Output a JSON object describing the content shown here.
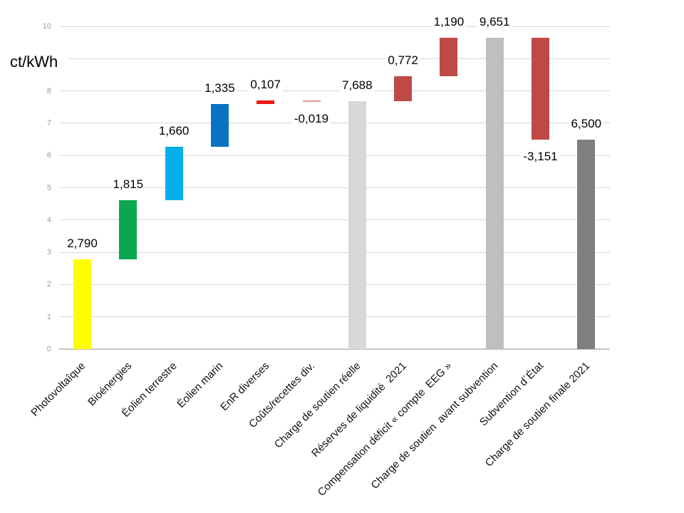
{
  "unit_label": "ct/kWh",
  "chart_data": {
    "type": "bar",
    "subtype": "waterfall",
    "title": "",
    "ylabel": "ct/kWh",
    "xlabel": "",
    "ylim": [
      0,
      10
    ],
    "grid": true,
    "legend": "none",
    "y_axis": {
      "ticks": [
        {
          "value": 0,
          "label": "0"
        },
        {
          "value": 1,
          "label": "1"
        },
        {
          "value": 2,
          "label": "2"
        },
        {
          "value": 3,
          "label": "3"
        },
        {
          "value": 4,
          "label": "4"
        },
        {
          "value": 5,
          "label": "5"
        },
        {
          "value": 6,
          "label": "6"
        },
        {
          "value": 7,
          "label": "7"
        },
        {
          "value": 8,
          "label": "8"
        },
        {
          "value": 9,
          "label": ""
        },
        {
          "value": 10,
          "label": "10"
        }
      ]
    },
    "categories": [
      "Photovoltaîque",
      "Bioénergies",
      "Éolien terrestre",
      "Éolien marin",
      "EnR diverses",
      "Coûts/recettes div.",
      "Charge de soutien réelle",
      "Réserves de liquidité  2021",
      "Compensation déficit « compte  EEG »",
      "Charge de soutien  avant subvention",
      "Subvention d´État",
      "Charge de soutien finale 2021"
    ],
    "bars": [
      {
        "category": "Photovoltaîque",
        "value": 2.79,
        "value_label": "2,790",
        "start": 0,
        "end": 2.79,
        "color": "#ffff00",
        "label_side": "above"
      },
      {
        "category": "Bioénergies",
        "value": 1.815,
        "value_label": "1,815",
        "start": 2.79,
        "end": 4.605,
        "color": "#0aa74e",
        "label_side": "above"
      },
      {
        "category": "Éolien terrestre",
        "value": 1.66,
        "value_label": "1,660",
        "start": 4.605,
        "end": 6.265,
        "color": "#06aeec",
        "label_side": "above"
      },
      {
        "category": "Éolien marin",
        "value": 1.335,
        "value_label": "1,335",
        "start": 6.265,
        "end": 7.6,
        "color": "#0a72c2",
        "label_side": "above"
      },
      {
        "category": "EnR diverses",
        "value": 0.107,
        "value_label": "0,107",
        "start": 7.6,
        "end": 7.707,
        "color": "#f01414",
        "label_side": "above"
      },
      {
        "category": "Coûts/recettes div.",
        "value": -0.019,
        "value_label": "-0,019",
        "start": 7.707,
        "end": 7.688,
        "color": "#e39a98",
        "label_side": "below"
      },
      {
        "category": "Charge de soutien réelle",
        "value": 7.688,
        "value_label": "7,688",
        "start": 0,
        "end": 7.688,
        "color": "#d8d8d8",
        "label_side": "above"
      },
      {
        "category": "Réserves de liquidité  2021",
        "value": 0.772,
        "value_label": "0,772",
        "start": 7.688,
        "end": 8.46,
        "color": "#be4a46",
        "label_side": "above"
      },
      {
        "category": "Compensation déficit « compte  EEG »",
        "value": 1.19,
        "value_label": "1,190",
        "start": 8.46,
        "end": 9.651,
        "color": "#be4a46",
        "label_side": "above"
      },
      {
        "category": "Charge de soutien  avant subvention",
        "value": 9.651,
        "value_label": "9,651",
        "start": 0,
        "end": 9.651,
        "color": "#bfbfbf",
        "label_side": "above"
      },
      {
        "category": "Subvention d´État",
        "value": -3.151,
        "value_label": "-3,151",
        "start": 9.651,
        "end": 6.5,
        "color": "#be4a46",
        "label_side": "below"
      },
      {
        "category": "Charge de soutien finale 2021",
        "value": 6.5,
        "value_label": "6,500",
        "start": 0,
        "end": 6.5,
        "color": "#7f7f7f",
        "label_side": "above"
      }
    ],
    "colors": {
      "photovoltaics": "#ffff00",
      "bioenergy": "#0aa74e",
      "onshore_wind": "#06aeec",
      "offshore_wind": "#0a72c2",
      "misc_renewables": "#f01414",
      "misc_costs": "#e39a98",
      "subtotal_light_gray": "#d8d8d8",
      "adjustment_red": "#be4a46",
      "subtotal_medium_gray": "#bfbfbf",
      "final_dark_gray": "#7f7f7f",
      "gridline": "#d7d7d7",
      "tick_text": "#9c9c9c"
    }
  }
}
